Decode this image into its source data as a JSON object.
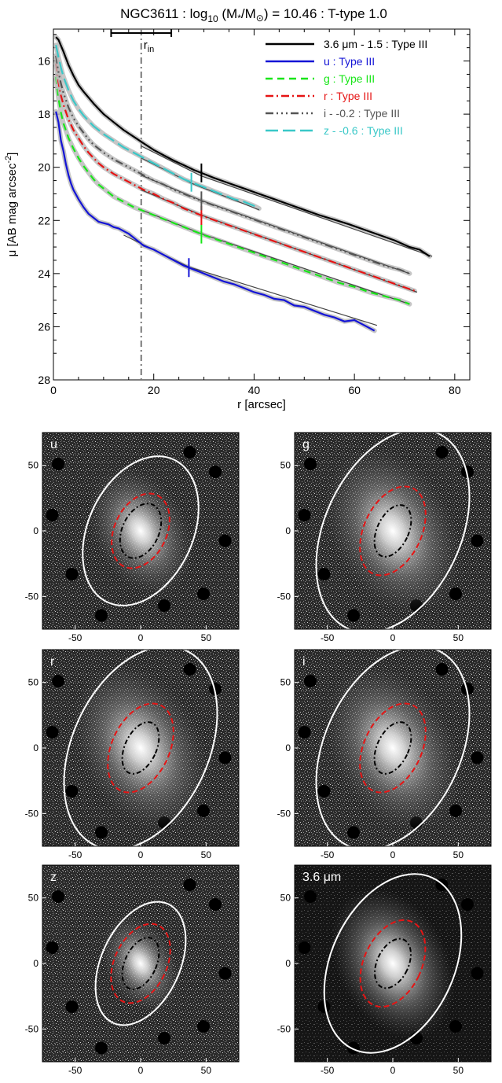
{
  "chart_data": [
    {
      "type": "line",
      "title": {
        "prefix": "NGC3611 : log",
        "sub": "10",
        "middle": " (M",
        "star": "*",
        "slash": "/M",
        "sun": "⊙",
        "suffix": ") = 10.46 : T-type 1.0"
      },
      "xlabel": "r [arcsec]",
      "ylabel": {
        "prefix": "μ [AB mag arcsec",
        "sup": "-2",
        "suffix": "]"
      },
      "xlim": [
        0,
        83
      ],
      "ylim": [
        28,
        14.8
      ],
      "y_inverted": true,
      "x_ticks": [
        0,
        20,
        40,
        60,
        80
      ],
      "y_ticks": [
        16,
        18,
        20,
        22,
        24,
        26,
        28
      ],
      "r_in": {
        "value": 17.5,
        "label_main": "r",
        "label_sub": "in",
        "error_bar": [
          11.5,
          23.5
        ]
      },
      "series": [
        {
          "name": "3.6 μm - 1.5 : Type III",
          "color": "#000000",
          "dash": "solid",
          "x": [
            0.5,
            1,
            2,
            3,
            4,
            5,
            6,
            8,
            10,
            12,
            14,
            16,
            18,
            20,
            22,
            24,
            26,
            28,
            30,
            32,
            35,
            38,
            41,
            44,
            47,
            50,
            53,
            56,
            59,
            62,
            65,
            68,
            71,
            73,
            75
          ],
          "y": [
            15.1,
            15.2,
            15.65,
            16.15,
            16.55,
            16.9,
            17.15,
            17.6,
            18.0,
            18.3,
            18.6,
            18.85,
            19.1,
            19.35,
            19.55,
            19.75,
            19.92,
            20.1,
            20.25,
            20.4,
            20.6,
            20.8,
            21.0,
            21.2,
            21.4,
            21.6,
            21.8,
            21.97,
            22.15,
            22.35,
            22.55,
            22.75,
            23.0,
            23.1,
            23.35
          ],
          "break_radius": 29.5,
          "fit": {
            "inner": [
              [
                17.5,
                19.2
              ],
              [
                29.5,
                20.33
              ]
            ],
            "outer": [
              [
                29.5,
                20.33
              ],
              [
                75.5,
                23.35
              ]
            ]
          }
        },
        {
          "name": "u : Type III",
          "color": "#1414d6",
          "dash": "solid",
          "x": [
            0.5,
            1,
            1.5,
            2,
            2.5,
            3,
            3.5,
            4,
            5,
            6,
            7,
            8,
            9,
            10,
            11,
            12,
            13,
            14,
            15,
            16,
            17,
            18,
            20,
            22,
            24,
            26,
            28,
            30,
            32,
            34,
            36,
            38,
            40,
            42,
            44,
            46,
            48,
            50,
            52,
            54,
            56,
            58,
            60,
            62,
            64
          ],
          "y": [
            17.9,
            18.3,
            19.0,
            19.4,
            19.9,
            20.3,
            20.6,
            20.85,
            21.2,
            21.5,
            21.75,
            21.9,
            22.05,
            22.1,
            22.15,
            22.25,
            22.3,
            22.4,
            22.5,
            22.65,
            22.8,
            22.95,
            23.1,
            23.3,
            23.5,
            23.7,
            23.85,
            24.0,
            24.15,
            24.3,
            24.4,
            24.55,
            24.7,
            24.8,
            24.95,
            25.0,
            25.2,
            25.25,
            25.4,
            25.55,
            25.65,
            25.8,
            25.75,
            25.95,
            26.15
          ],
          "break_radius": 27,
          "fit": {
            "inner": [
              [
                14,
                22.55
              ],
              [
                27,
                23.75
              ]
            ],
            "outer": [
              [
                27,
                23.75
              ],
              [
                64.5,
                25.95
              ]
            ]
          }
        },
        {
          "name": "g : Type III",
          "color": "#19e619",
          "dash": "dashed",
          "x": [
            0.5,
            1,
            1.5,
            2,
            3,
            4,
            5,
            6,
            7,
            8,
            9,
            10,
            11,
            12,
            14,
            16,
            18,
            20,
            22,
            24,
            26,
            28,
            30,
            33,
            36,
            39,
            42,
            45,
            48,
            51,
            54,
            57,
            60,
            63,
            66,
            69,
            71
          ],
          "y": [
            16.6,
            17.4,
            17.95,
            18.35,
            18.9,
            19.3,
            19.65,
            19.95,
            20.2,
            20.45,
            20.65,
            20.8,
            20.95,
            21.1,
            21.3,
            21.5,
            21.65,
            21.8,
            21.95,
            22.1,
            22.25,
            22.4,
            22.55,
            22.75,
            22.95,
            23.15,
            23.35,
            23.55,
            23.75,
            23.95,
            24.15,
            24.35,
            24.5,
            24.7,
            24.85,
            25.0,
            25.15
          ],
          "break_radius": 29.5,
          "fit": {
            "inner": [
              [
                17.5,
                21.6
              ],
              [
                29.5,
                22.5
              ]
            ],
            "outer": [
              [
                29.5,
                22.5
              ],
              [
                71,
                25.15
              ]
            ]
          }
        },
        {
          "name": "r : Type III",
          "color": "#e61414",
          "dash": "dashdot",
          "x": [
            0.5,
            1,
            1.5,
            2,
            3,
            4,
            5,
            6,
            7,
            8,
            9,
            10,
            12,
            14,
            16,
            18,
            20,
            22,
            24,
            26,
            28,
            30,
            33,
            36,
            39,
            42,
            45,
            48,
            51,
            54,
            57,
            60,
            63,
            66,
            69,
            72
          ],
          "y": [
            16.1,
            16.8,
            17.3,
            17.65,
            18.2,
            18.6,
            18.9,
            19.2,
            19.45,
            19.65,
            19.85,
            20.0,
            20.25,
            20.45,
            20.65,
            20.85,
            21.0,
            21.2,
            21.35,
            21.55,
            21.7,
            21.85,
            22.05,
            22.25,
            22.45,
            22.65,
            22.85,
            23.05,
            23.25,
            23.45,
            23.65,
            23.85,
            24.05,
            24.25,
            24.45,
            24.65
          ],
          "break_radius": 29.5,
          "fit": {
            "inner": [
              [
                17.5,
                20.85
              ],
              [
                29.5,
                21.8
              ]
            ],
            "outer": [
              [
                29.5,
                21.8
              ],
              [
                72.5,
                24.7
              ]
            ]
          }
        },
        {
          "name": "i - -0.2 : Type III",
          "color": "#555555",
          "dash": "dashdotdotdot",
          "x": [
            0.5,
            1,
            1.5,
            2,
            3,
            4,
            5,
            6,
            7,
            8,
            9,
            10,
            12,
            14,
            16,
            18,
            20,
            22,
            24,
            26,
            28,
            30,
            33,
            36,
            39,
            42,
            45,
            48,
            51,
            54,
            57,
            60,
            63,
            66,
            69,
            71
          ],
          "y": [
            15.8,
            16.4,
            16.85,
            17.2,
            17.75,
            18.15,
            18.45,
            18.7,
            18.95,
            19.15,
            19.3,
            19.45,
            19.7,
            19.9,
            20.1,
            20.3,
            20.5,
            20.65,
            20.85,
            21.0,
            21.15,
            21.3,
            21.5,
            21.7,
            21.9,
            22.1,
            22.3,
            22.5,
            22.7,
            22.9,
            23.1,
            23.3,
            23.5,
            23.7,
            23.85,
            24.0
          ],
          "break_radius": 29.5,
          "fit": {
            "inner": [
              [
                17.5,
                20.3
              ],
              [
                29.5,
                21.25
              ]
            ],
            "outer": [
              [
                29.5,
                21.25
              ],
              [
                71,
                24.0
              ]
            ]
          }
        },
        {
          "name": "z - -0.6 : Type III",
          "color": "#3ac8c8",
          "dash": "longdash",
          "x": [
            0.5,
            1,
            1.5,
            2,
            3,
            4,
            5,
            6,
            7,
            8,
            9,
            10,
            12,
            14,
            16,
            18,
            20,
            22,
            24,
            26,
            28,
            30,
            32,
            34,
            36,
            38,
            40,
            41
          ],
          "y": [
            15.4,
            15.85,
            16.25,
            16.6,
            17.1,
            17.5,
            17.8,
            18.05,
            18.25,
            18.45,
            18.6,
            18.75,
            19.0,
            19.25,
            19.45,
            19.65,
            19.85,
            20.05,
            20.25,
            20.45,
            20.6,
            20.75,
            20.9,
            21.05,
            21.2,
            21.3,
            21.45,
            21.55
          ],
          "break_radius": 27.5,
          "fit": {
            "inner": [
              [
                17.5,
                19.65
              ],
              [
                27.5,
                20.6
              ]
            ],
            "outer": [
              [
                27.5,
                20.6
              ],
              [
                41,
                21.6
              ]
            ]
          }
        }
      ],
      "legend_position": "top-right",
      "grid": false
    },
    {
      "type": "image-panels",
      "x_ticks": [
        -50,
        0,
        50
      ],
      "y_ticks": [
        50,
        0,
        -50
      ],
      "axis_range": [
        -75,
        75
      ],
      "ellipse_colors": {
        "outer": "#ffffff",
        "middle": "#e61414",
        "inner": "#000000"
      },
      "panels": [
        {
          "label": "u",
          "outer": [
            40,
            60
          ],
          "middle": [
            20,
            30
          ],
          "inner": [
            14,
            22
          ]
        },
        {
          "label": "g",
          "outer": [
            52,
            82
          ],
          "middle": [
            22,
            36
          ],
          "inner": [
            12,
            21
          ]
        },
        {
          "label": "r",
          "outer": [
            52,
            82
          ],
          "middle": [
            22,
            36
          ],
          "inner": [
            12,
            21
          ]
        },
        {
          "label": "i",
          "outer": [
            52,
            82
          ],
          "middle": [
            22,
            36
          ],
          "inner": [
            12,
            21
          ]
        },
        {
          "label": "z",
          "outer": [
            30,
            50
          ],
          "middle": [
            20,
            32
          ],
          "inner": [
            12,
            21
          ]
        },
        {
          "label": "3.6 μm",
          "outer": [
            47,
            72
          ],
          "middle": [
            22,
            35
          ],
          "inner": [
            12,
            20
          ]
        }
      ]
    }
  ]
}
